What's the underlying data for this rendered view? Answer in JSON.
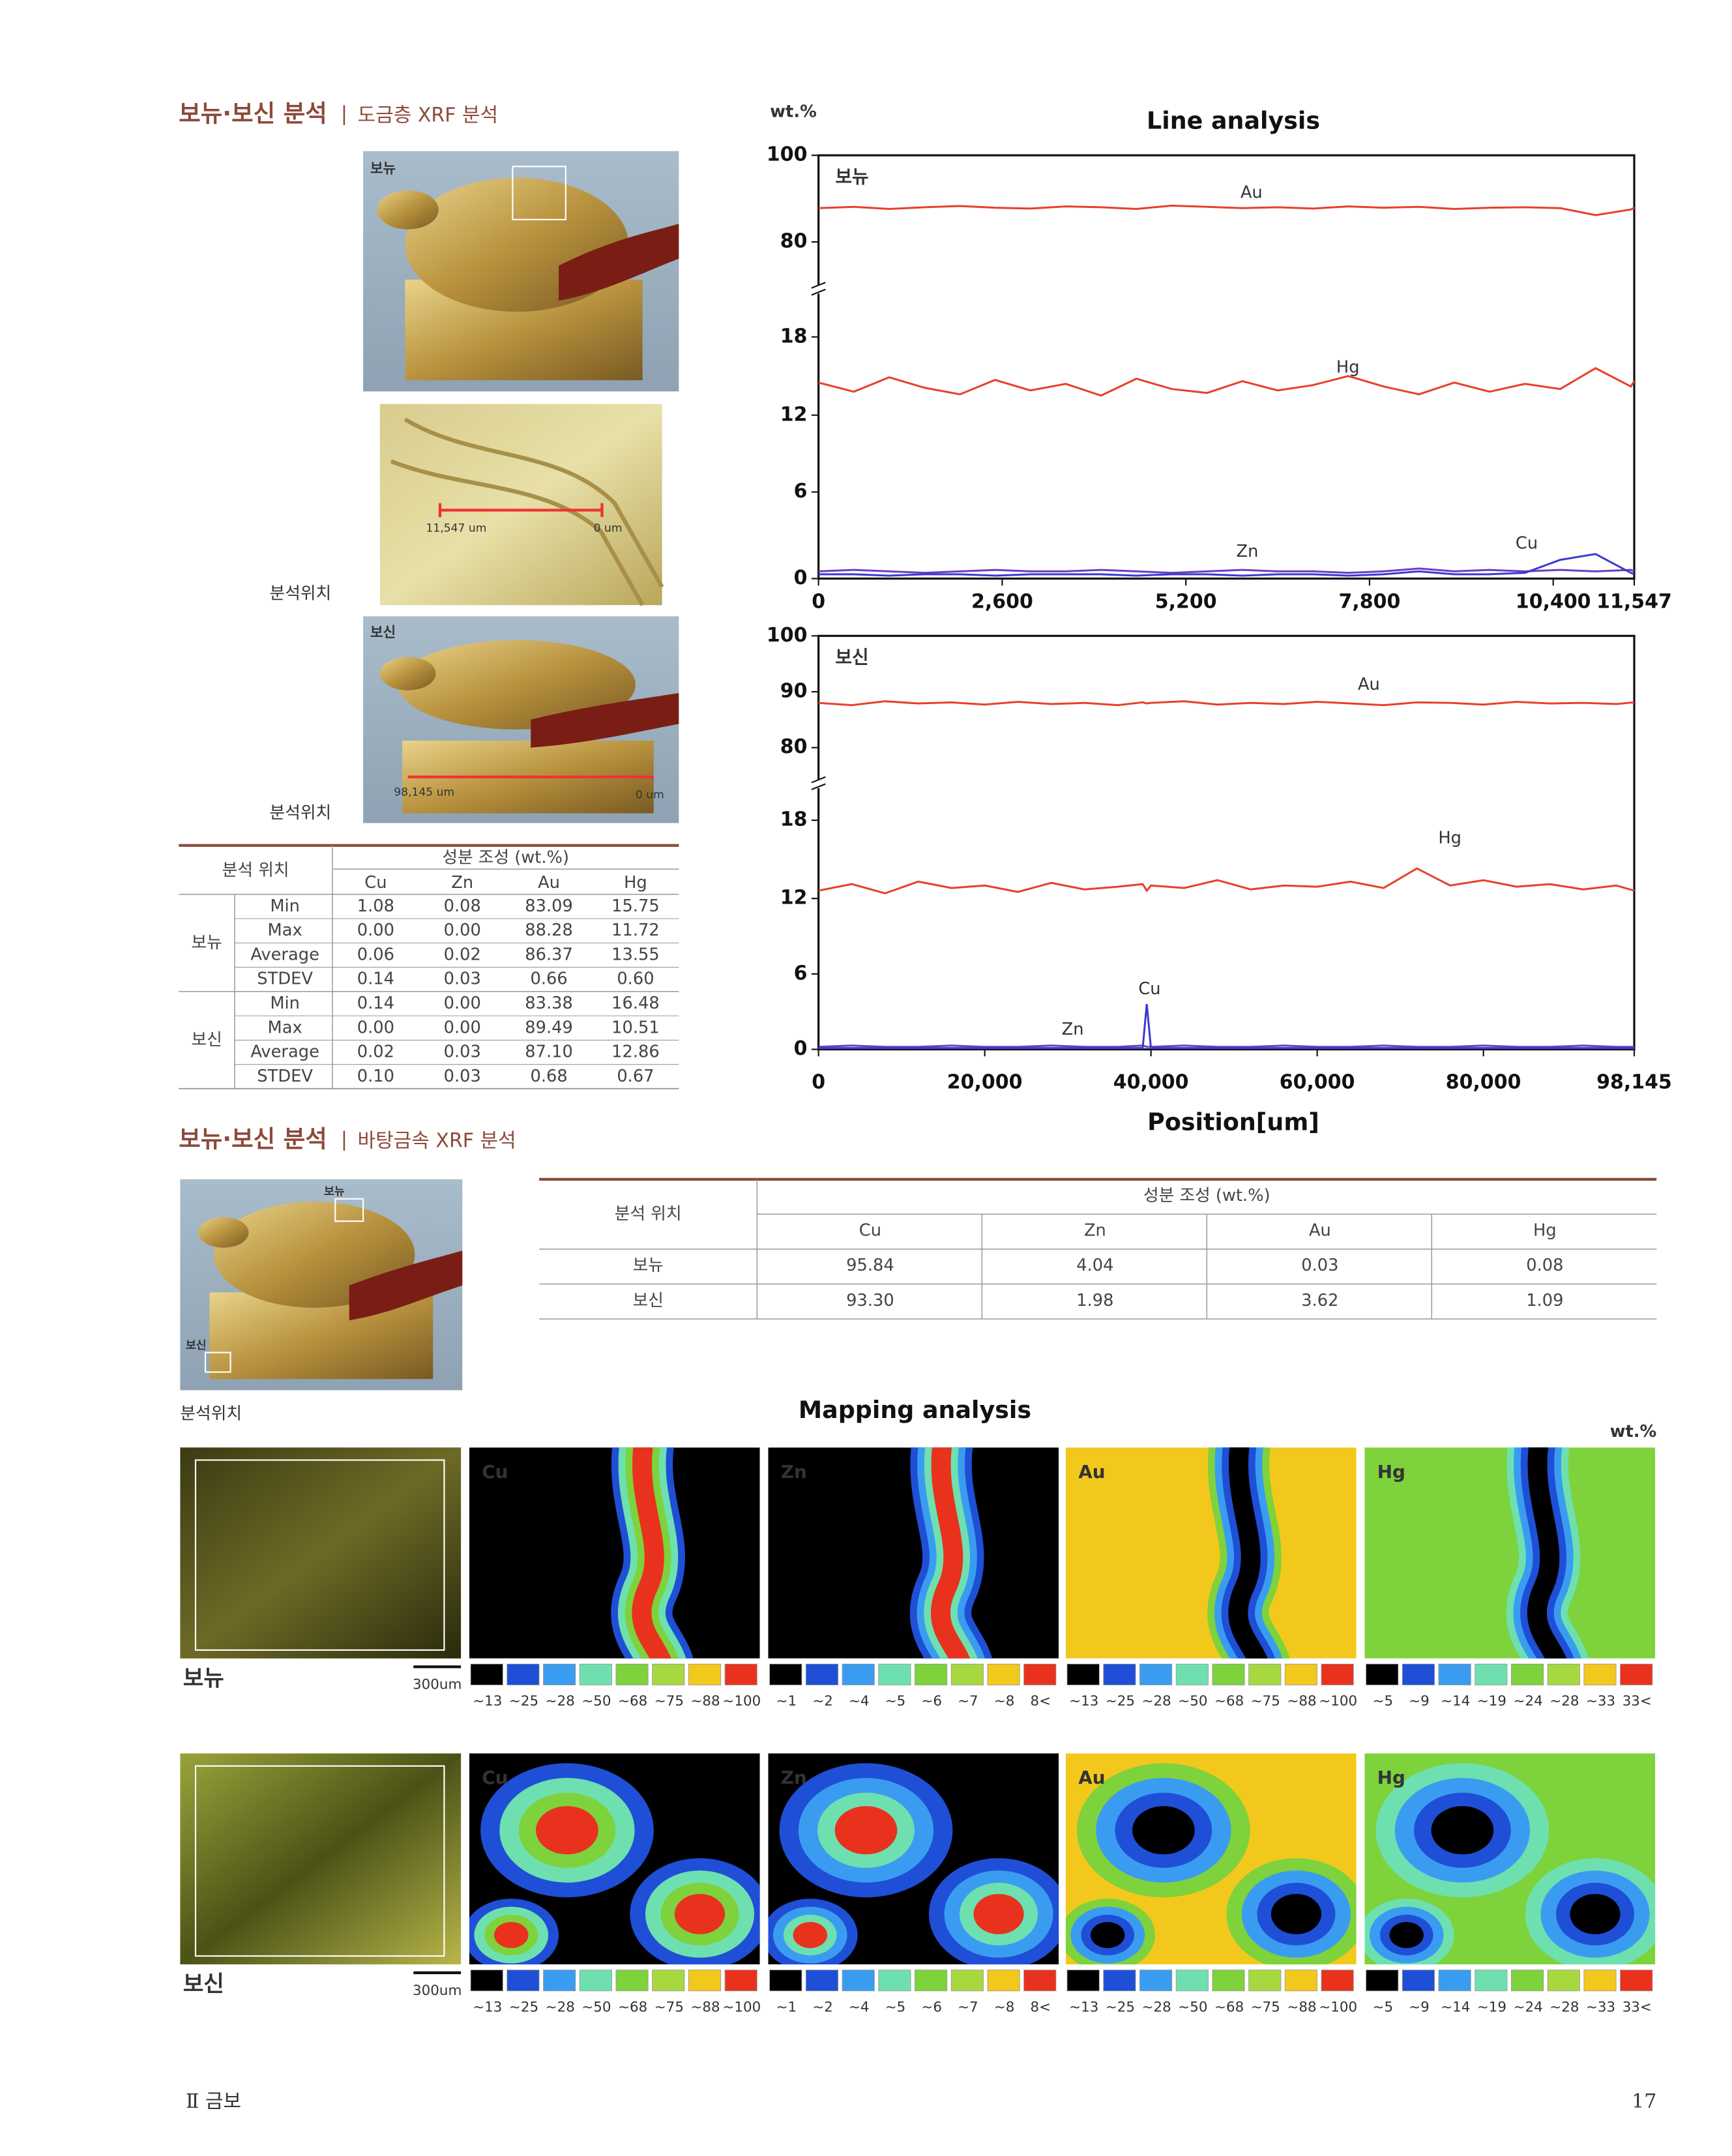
{
  "section1": {
    "title": "보뉴·보신 분석",
    "subtitle": "도금층 XRF 분석"
  },
  "photos": {
    "label_bonyu": "보뉴",
    "label_bosin": "보신",
    "location_1": "분석위치",
    "location_2": "분석위치",
    "scale_start_1": "11,547 um",
    "scale_end_1": "0 um",
    "scale_start_2": "98,145 um",
    "scale_end_2": "0 um"
  },
  "table1": {
    "header_location": "분석 위치",
    "header_composition": "성분 조성 (wt.%)",
    "columns": [
      "Cu",
      "Zn",
      "Au",
      "Hg"
    ],
    "groups": [
      {
        "name": "보뉴",
        "rows": [
          {
            "stat": "Min",
            "values": [
              "1.08",
              "0.08",
              "83.09",
              "15.75"
            ]
          },
          {
            "stat": "Max",
            "values": [
              "0.00",
              "0.00",
              "88.28",
              "11.72"
            ]
          },
          {
            "stat": "Average",
            "values": [
              "0.06",
              "0.02",
              "86.37",
              "13.55"
            ]
          },
          {
            "stat": "STDEV",
            "values": [
              "0.14",
              "0.03",
              "0.66",
              "0.60"
            ]
          }
        ]
      },
      {
        "name": "보신",
        "rows": [
          {
            "stat": "Min",
            "values": [
              "0.14",
              "0.00",
              "83.38",
              "16.48"
            ]
          },
          {
            "stat": "Max",
            "values": [
              "0.00",
              "0.00",
              "89.49",
              "10.51"
            ]
          },
          {
            "stat": "Average",
            "values": [
              "0.02",
              "0.03",
              "87.10",
              "12.86"
            ]
          },
          {
            "stat": "STDEV",
            "values": [
              "0.10",
              "0.03",
              "0.68",
              "0.67"
            ]
          }
        ]
      }
    ]
  },
  "line_analysis": {
    "title": "Line analysis",
    "y_label": "wt.%",
    "x_label": "Position[um]"
  },
  "chart_data": [
    {
      "type": "line",
      "panel_label": "보뉴",
      "axis_break": true,
      "xlim": [
        0,
        11547
      ],
      "xticks": [
        0,
        {
          "value": 2600,
          "label": "2,600"
        },
        {
          "value": 5200,
          "label": "5,200"
        },
        {
          "value": 7800,
          "label": "7,800"
        },
        {
          "value": 10400,
          "label": "10,400"
        },
        {
          "value": 11547,
          "label": "11,547"
        }
      ],
      "ylim": [
        0,
        100
      ],
      "yticks": [
        0,
        6,
        12,
        18,
        80,
        100
      ],
      "x": [
        0,
        500,
        1000,
        1500,
        2000,
        2500,
        3000,
        3500,
        4000,
        4500,
        5000,
        5500,
        6000,
        6500,
        7000,
        7500,
        8000,
        8500,
        9000,
        9500,
        10000,
        10500,
        11000,
        11500,
        11547
      ],
      "series": [
        {
          "name": "Au",
          "color": "#e8402a",
          "values": [
            87.8,
            88.1,
            87.6,
            88.0,
            88.3,
            87.9,
            87.7,
            88.2,
            88.0,
            87.6,
            88.4,
            88.1,
            87.8,
            88.0,
            87.7,
            88.2,
            87.9,
            88.1,
            87.6,
            87.9,
            88.0,
            87.8,
            86.2,
            87.5,
            87.9
          ]
        },
        {
          "name": "Hg",
          "color": "#e8402a",
          "values": [
            14.5,
            13.8,
            14.9,
            14.1,
            13.6,
            14.7,
            13.9,
            14.4,
            13.5,
            14.8,
            14.0,
            13.7,
            14.6,
            13.9,
            14.3,
            15.0,
            14.2,
            13.6,
            14.5,
            13.8,
            14.4,
            14.0,
            15.6,
            14.2,
            14.6
          ]
        },
        {
          "name": "Zn",
          "color": "#6a3fc0",
          "values": [
            0.5,
            0.6,
            0.5,
            0.4,
            0.5,
            0.6,
            0.5,
            0.5,
            0.6,
            0.5,
            0.4,
            0.5,
            0.6,
            0.5,
            0.5,
            0.4,
            0.5,
            0.7,
            0.5,
            0.6,
            0.5,
            0.6,
            0.5,
            0.6,
            0.5
          ]
        },
        {
          "name": "Cu",
          "color": "#3a3ad0",
          "values": [
            0.3,
            0.3,
            0.2,
            0.3,
            0.3,
            0.2,
            0.3,
            0.3,
            0.3,
            0.2,
            0.3,
            0.3,
            0.2,
            0.3,
            0.3,
            0.2,
            0.3,
            0.5,
            0.3,
            0.3,
            0.4,
            1.3,
            1.7,
            0.4,
            0.3
          ]
        }
      ]
    },
    {
      "type": "line",
      "panel_label": "보신",
      "axis_break": true,
      "xlim": [
        0,
        98145
      ],
      "xticks": [
        0,
        {
          "value": 20000,
          "label": "20,000"
        },
        {
          "value": 40000,
          "label": "40,000"
        },
        {
          "value": 60000,
          "label": "60,000"
        },
        {
          "value": 80000,
          "label": "80,000"
        },
        {
          "value": 98145,
          "label": "98,145"
        }
      ],
      "ylim": [
        0,
        100
      ],
      "yticks": [
        0,
        6,
        12,
        18,
        80,
        90,
        100
      ],
      "x": [
        0,
        4000,
        8000,
        12000,
        16000,
        20000,
        24000,
        28000,
        32000,
        36000,
        39000,
        39500,
        40000,
        44000,
        48000,
        52000,
        56000,
        60000,
        64000,
        68000,
        72000,
        76000,
        80000,
        84000,
        88000,
        92000,
        96000,
        98145
      ],
      "series": [
        {
          "name": "Au",
          "color": "#e8402a",
          "values": [
            88.0,
            87.6,
            88.3,
            87.9,
            88.1,
            87.7,
            88.2,
            87.8,
            88.0,
            87.6,
            88.1,
            87.9,
            88.0,
            88.3,
            87.7,
            88.0,
            87.8,
            88.2,
            87.9,
            87.6,
            88.1,
            88.0,
            87.7,
            88.2,
            87.9,
            88.0,
            87.8,
            88.1
          ]
        },
        {
          "name": "Hg",
          "color": "#e8402a",
          "values": [
            12.6,
            13.1,
            12.4,
            13.3,
            12.8,
            13.0,
            12.5,
            13.2,
            12.7,
            12.9,
            13.1,
            12.6,
            13.0,
            12.8,
            13.4,
            12.7,
            13.0,
            12.9,
            13.3,
            12.8,
            14.3,
            13.0,
            13.4,
            12.9,
            13.1,
            12.7,
            13.0,
            12.6
          ]
        },
        {
          "name": "Zn",
          "color": "#6a3fc0",
          "values": [
            0.2,
            0.3,
            0.2,
            0.2,
            0.3,
            0.2,
            0.2,
            0.3,
            0.2,
            0.2,
            0.3,
            0.2,
            0.2,
            0.3,
            0.2,
            0.2,
            0.3,
            0.2,
            0.2,
            0.3,
            0.2,
            0.2,
            0.3,
            0.2,
            0.2,
            0.3,
            0.2,
            0.2
          ]
        },
        {
          "name": "Cu",
          "color": "#3a3ad0",
          "values": [
            0.1,
            0.1,
            0.1,
            0.1,
            0.1,
            0.1,
            0.1,
            0.1,
            0.1,
            0.1,
            0.1,
            3.6,
            0.1,
            0.1,
            0.1,
            0.1,
            0.1,
            0.1,
            0.1,
            0.1,
            0.1,
            0.1,
            0.1,
            0.1,
            0.1,
            0.1,
            0.1,
            0.1
          ]
        }
      ]
    }
  ],
  "section2": {
    "title": "보뉴·보신 분석",
    "subtitle": "바탕금속 XRF 분석",
    "photo_label_bonyu": "보뉴",
    "photo_label_bosin": "보신",
    "location": "분석위치"
  },
  "table2": {
    "header_location": "분석 위치",
    "header_composition": "성분 조성 (wt.%)",
    "columns": [
      "Cu",
      "Zn",
      "Au",
      "Hg"
    ],
    "rows": [
      [
        "보뉴",
        "95.84",
        "4.04",
        "0.03",
        "0.08"
      ],
      [
        "보신",
        "93.30",
        "1.98",
        "3.62",
        "1.09"
      ]
    ]
  },
  "mapping": {
    "title": "Mapping analysis",
    "unit": "wt.%",
    "samples": [
      {
        "name": "보뉴",
        "scale": "300um"
      },
      {
        "name": "보신",
        "scale": "300um"
      }
    ],
    "elements": [
      {
        "name": "Cu",
        "legend": [
          "~13",
          "~25",
          "~28",
          "~50",
          "~68",
          "~75",
          "~88",
          "~100"
        ]
      },
      {
        "name": "Zn",
        "legend": [
          "~1",
          "~2",
          "~4",
          "~5",
          "~6",
          "~7",
          "~8",
          "8<"
        ]
      },
      {
        "name": "Au",
        "legend": [
          "~13",
          "~25",
          "~28",
          "~50",
          "~68",
          "~75",
          "~88",
          "~100"
        ]
      },
      {
        "name": "Hg",
        "legend": [
          "~5",
          "~9",
          "~14",
          "~19",
          "~24",
          "~28",
          "~33",
          "33<"
        ]
      }
    ]
  },
  "footer": {
    "chapter": "Ⅱ 금보",
    "page": "17"
  }
}
